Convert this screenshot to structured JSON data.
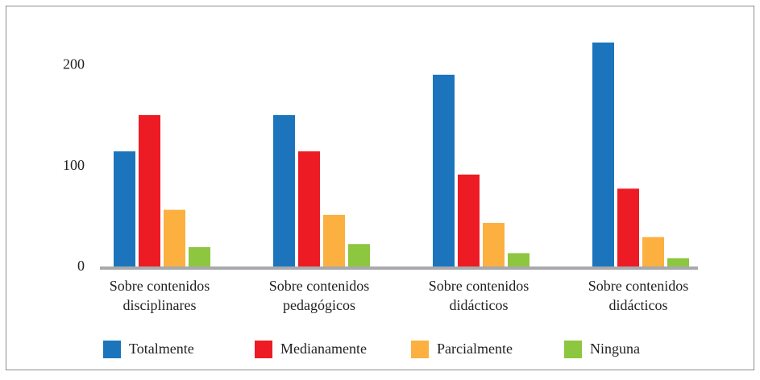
{
  "chart_data": {
    "type": "bar",
    "categories": [
      [
        "Sobre contenidos",
        "disciplinares"
      ],
      [
        "Sobre contenidos",
        "pedagógicos"
      ],
      [
        "Sobre contenidos",
        "didácticos"
      ],
      [
        "Sobre contenidos",
        "didácticos"
      ]
    ],
    "series": [
      {
        "name": "Totalmente",
        "color": "#1c75bc",
        "values": [
          115,
          151,
          191,
          223
        ]
      },
      {
        "name": "Medianamente",
        "color": "#ed1c24",
        "values": [
          151,
          115,
          92,
          78
        ]
      },
      {
        "name": "Parcialmente",
        "color": "#fbb040",
        "values": [
          57,
          52,
          44,
          30
        ]
      },
      {
        "name": "Ninguna",
        "color": "#8dc63f",
        "values": [
          20,
          23,
          14,
          9
        ]
      }
    ],
    "ylim": [
      0,
      230
    ],
    "yticks": [
      0,
      100,
      200
    ],
    "grid": false,
    "legend": "bottom"
  }
}
